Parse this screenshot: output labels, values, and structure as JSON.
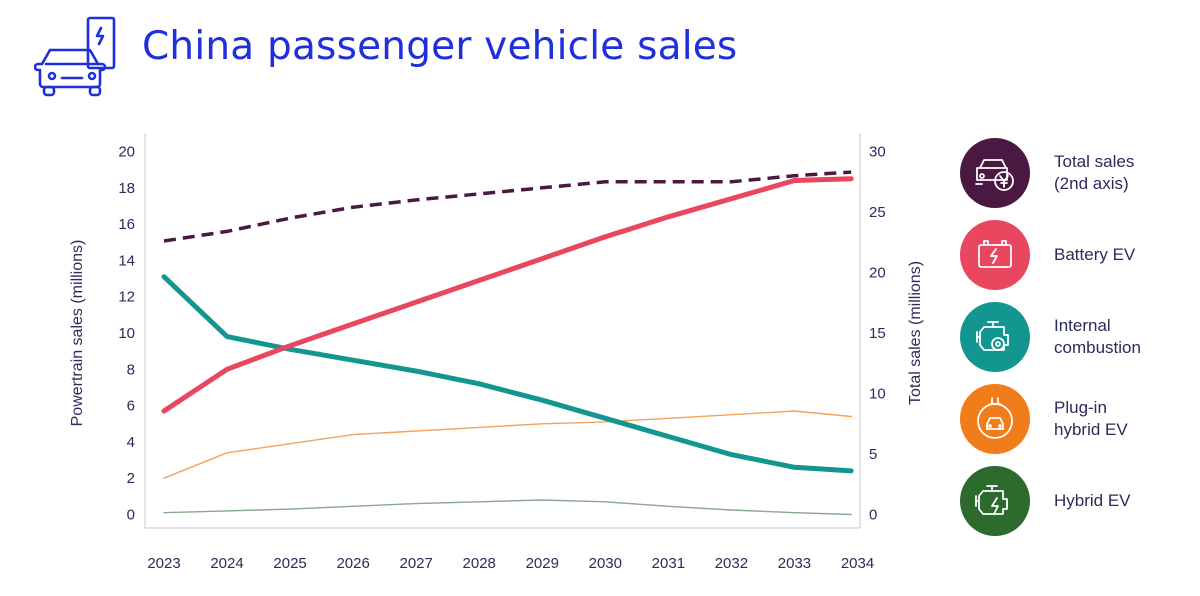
{
  "header": {
    "title": "China passenger vehicle sales",
    "icon": "ev-car-charging-icon",
    "title_color": "#1f2fdc"
  },
  "chart_data": {
    "type": "line",
    "title": "China passenger vehicle sales",
    "x": [
      2023,
      2024,
      2025,
      2026,
      2027,
      2028,
      2029,
      2030,
      2031,
      2032,
      2033,
      2034
    ],
    "xlim": [
      2023,
      2034
    ],
    "ylabel": "Powertrain sales (millions)",
    "ylim": [
      0,
      20
    ],
    "yticks": [
      0,
      2,
      4,
      6,
      8,
      10,
      12,
      14,
      16,
      18,
      20
    ],
    "y2label": "Total sales (millions)",
    "y2lim": [
      0,
      30
    ],
    "y2ticks": [
      0,
      5,
      10,
      15,
      20,
      25,
      30
    ],
    "grid": false,
    "legend_position": "right",
    "series": [
      {
        "name": "Total sales\n(2nd axis)",
        "axis": "right",
        "style": "dashed",
        "color": "#4a1942",
        "icon": "car-yen-icon",
        "x": [
          2023,
          2024,
          2025,
          2026,
          2027,
          2028,
          2029,
          2030,
          2031,
          2032,
          2033,
          2033.9
        ],
        "values": [
          22.6,
          23.4,
          24.5,
          25.4,
          26.0,
          26.5,
          27.0,
          27.5,
          27.5,
          27.5,
          28.0,
          28.3
        ]
      },
      {
        "name": "Battery EV",
        "axis": "left",
        "style": "solid",
        "color": "#e8475f",
        "icon": "battery-icon",
        "x": [
          2023,
          2024,
          2025,
          2026,
          2027,
          2028,
          2029,
          2030,
          2031,
          2032,
          2033,
          2033.9
        ],
        "values": [
          5.7,
          8.0,
          9.3,
          10.5,
          11.7,
          12.9,
          14.1,
          15.3,
          16.4,
          17.4,
          18.4,
          18.5
        ]
      },
      {
        "name": "Internal\ncombustion",
        "axis": "left",
        "style": "solid",
        "color": "#13968f",
        "icon": "engine-icon",
        "x": [
          2023,
          2024,
          2025,
          2026,
          2027,
          2028,
          2029,
          2030,
          2031,
          2032,
          2033,
          2033.9
        ],
        "values": [
          13.1,
          9.8,
          9.1,
          8.5,
          7.9,
          7.2,
          6.3,
          5.3,
          4.3,
          3.3,
          2.6,
          2.4
        ]
      },
      {
        "name": "Plug-in\nhybrid EV",
        "axis": "left",
        "style": "solid",
        "color": "#f3a35c",
        "icon": "car-plug-icon",
        "x": [
          2023,
          2024,
          2025,
          2026,
          2027,
          2028,
          2029,
          2030,
          2031,
          2032,
          2033,
          2033.9
        ],
        "values": [
          2.0,
          3.4,
          3.9,
          4.4,
          4.6,
          4.8,
          5.0,
          5.1,
          5.3,
          5.5,
          5.7,
          5.4
        ]
      },
      {
        "name": "Hybrid EV",
        "axis": "left",
        "style": "solid",
        "color": "#2d6a2e",
        "line_color": "#8aa88a",
        "icon": "engine-bolt-icon",
        "x": [
          2023,
          2024,
          2025,
          2026,
          2027,
          2028,
          2029,
          2030,
          2031,
          2032,
          2033,
          2033.9
        ],
        "values": [
          0.1,
          0.2,
          0.3,
          0.45,
          0.6,
          0.7,
          0.8,
          0.7,
          0.45,
          0.25,
          0.1,
          0.0
        ]
      }
    ]
  }
}
